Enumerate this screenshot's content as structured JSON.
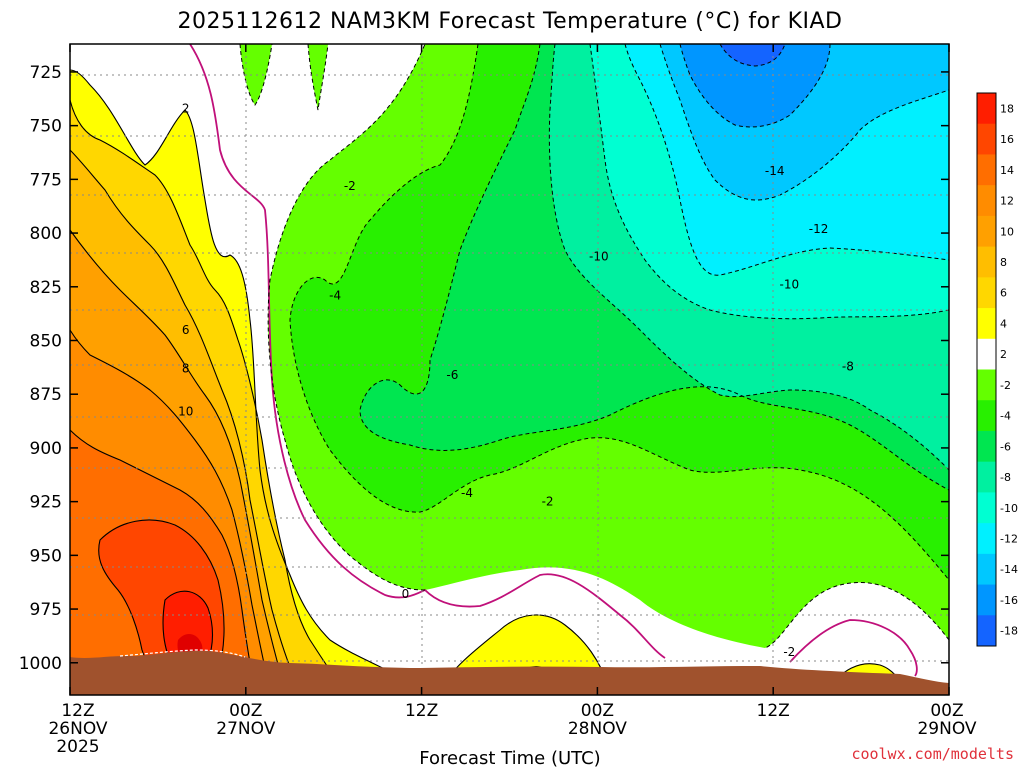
{
  "chart_data": {
    "type": "heatmap",
    "title": "2025112612 NAM3KM Forecast Temperature (°C) for KIAD",
    "xlabel": "Forecast Time (UTC)",
    "ylabel": "",
    "x_ticks": [
      {
        "line1": "12Z",
        "line2": "26NOV",
        "line3": "2025",
        "hours": 0
      },
      {
        "line1": "00Z",
        "line2": "27NOV",
        "line3": "",
        "hours": 12
      },
      {
        "line1": "12Z",
        "line2": "",
        "line3": "",
        "hours": 24
      },
      {
        "line1": "00Z",
        "line2": "28NOV",
        "line3": "",
        "hours": 36
      },
      {
        "line1": "12Z",
        "line2": "",
        "line3": "",
        "hours": 48
      },
      {
        "line1": "00Z",
        "line2": "29NOV",
        "line3": "",
        "hours": 60
      }
    ],
    "xlim": [
      0,
      60
    ],
    "y_ticks": [
      "725",
      "750",
      "775",
      "800",
      "825",
      "850",
      "875",
      "900",
      "925",
      "950",
      "975",
      "1000"
    ],
    "ylim": [
      712,
      1015
    ],
    "colorbar": {
      "ticks": [
        "18",
        "16",
        "14",
        "12",
        "10",
        "8",
        "6",
        "4",
        "2",
        "-2",
        "-4",
        "-6",
        "-8",
        "-10",
        "-12",
        "-14",
        "-16",
        "-18"
      ],
      "colors": [
        "#ff1e00",
        "#ff4600",
        "#ff6e00",
        "#ff8c00",
        "#ffa000",
        "#ffbe00",
        "#ffd700",
        "#ffff00",
        "#ffffff",
        "#64ff00",
        "#28f000",
        "#00e650",
        "#00f0a0",
        "#00ffd2",
        "#00f0ff",
        "#00c8ff",
        "#0096ff",
        "#1464ff"
      ]
    },
    "contour_labels": [
      {
        "text": "2",
        "hours": 7.9,
        "hpa": 742
      },
      {
        "text": "6",
        "hours": 7.9,
        "hpa": 845
      },
      {
        "text": "8",
        "hours": 7.9,
        "hpa": 863
      },
      {
        "text": "10",
        "hours": 7.9,
        "hpa": 883
      },
      {
        "text": "-2",
        "hours": 19.1,
        "hpa": 778
      },
      {
        "text": "-4",
        "hours": 18.1,
        "hpa": 829
      },
      {
        "text": "-6",
        "hours": 26.1,
        "hpa": 866
      },
      {
        "text": "-4",
        "hours": 27.1,
        "hpa": 921
      },
      {
        "text": "-2",
        "hours": 32.6,
        "hpa": 925
      },
      {
        "text": "0",
        "hours": 22.9,
        "hpa": 968
      },
      {
        "text": "-10",
        "hours": 36.1,
        "hpa": 811
      },
      {
        "text": "-14",
        "hours": 48.1,
        "hpa": 771
      },
      {
        "text": "-12",
        "hours": 51.1,
        "hpa": 798
      },
      {
        "text": "-10",
        "hours": 49.1,
        "hpa": 824
      },
      {
        "text": "-8",
        "hours": 53.1,
        "hpa": 862
      },
      {
        "text": "-2",
        "hours": 49.1,
        "hpa": 995
      }
    ]
  },
  "credit": "coolwx.com/modelts"
}
